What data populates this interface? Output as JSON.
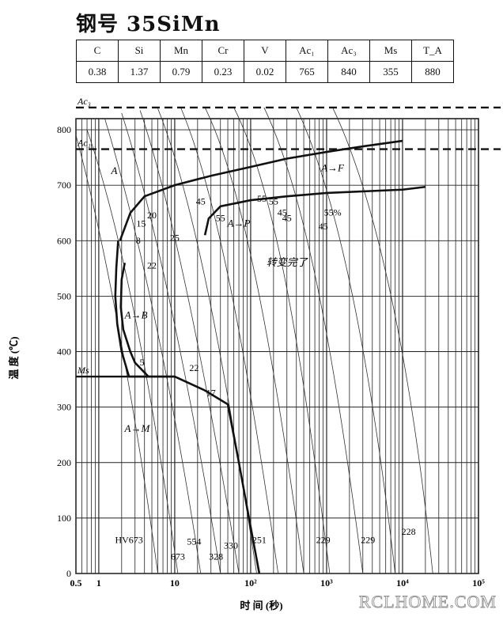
{
  "title": "钢号 35SiMn",
  "composition": {
    "headers": [
      "C",
      "Si",
      "Mn",
      "Cr",
      "V",
      "Ac₁",
      "Ac₃",
      "Ms",
      "T_A"
    ],
    "values": [
      "0.38",
      "1.37",
      "0.79",
      "0.23",
      "0.02",
      "765",
      "840",
      "355",
      "880"
    ]
  },
  "chart_data": {
    "type": "line",
    "xlabel": "时 间 (秒)",
    "ylabel": "温 度 (℃)",
    "x_scale": "log",
    "xlim": [
      0.5,
      100000
    ],
    "ylim": [
      0,
      820
    ],
    "x_ticks": [
      {
        "v": 0.5,
        "label": "0.5"
      },
      {
        "v": 1,
        "label": "1"
      },
      {
        "v": 10,
        "label": "10"
      },
      {
        "v": 100,
        "label": "10²"
      },
      {
        "v": 1000,
        "label": "10³"
      },
      {
        "v": 10000,
        "label": "10⁴"
      },
      {
        "v": 100000,
        "label": "10⁵"
      }
    ],
    "y_ticks": [
      0,
      100,
      200,
      300,
      400,
      500,
      600,
      700,
      800
    ],
    "reference_lines": [
      {
        "name": "Ac₃",
        "y": 840
      },
      {
        "name": "Ac₁",
        "y": 765
      },
      {
        "name": "Ms",
        "y": 355
      }
    ],
    "series": [
      {
        "name": "A→F",
        "points": [
          [
            1.9,
            600
          ],
          [
            2.6,
            650
          ],
          [
            4,
            680
          ],
          [
            10,
            700
          ],
          [
            30,
            717
          ],
          [
            100,
            733
          ],
          [
            300,
            748
          ],
          [
            1000,
            760
          ],
          [
            3000,
            770
          ],
          [
            10000,
            780
          ]
        ]
      },
      {
        "name": "A→P",
        "points": [
          [
            25,
            610
          ],
          [
            28,
            640
          ],
          [
            40,
            662
          ],
          [
            100,
            673
          ],
          [
            300,
            680
          ],
          [
            1000,
            686
          ],
          [
            10000,
            692
          ],
          [
            20000,
            697
          ]
        ]
      },
      {
        "name": "转变完了",
        "points": [
          [
            1.8,
            600
          ],
          [
            1.7,
            550
          ],
          [
            1.65,
            500
          ],
          [
            1.75,
            450
          ],
          [
            2,
            400
          ],
          [
            2.5,
            355
          ],
          [
            3,
            355
          ],
          [
            10,
            355
          ],
          [
            25,
            330
          ],
          [
            50,
            305
          ],
          [
            70,
            200
          ],
          [
            95,
            100
          ],
          [
            130,
            0
          ]
        ]
      },
      {
        "name": "A→B",
        "points": [
          [
            2.2,
            560
          ],
          [
            2.0,
            530
          ],
          [
            1.95,
            480
          ],
          [
            2.1,
            440
          ],
          [
            2.6,
            400
          ],
          [
            3,
            380
          ],
          [
            4.5,
            355
          ]
        ]
      }
    ],
    "cooling_labels": [
      "8",
      "15",
      "20",
      "22",
      "25",
      "45",
      "55",
      "55",
      "55",
      "45",
      "45",
      "55%",
      "45",
      "5",
      "22",
      "17"
    ],
    "hardness_values": [
      "HV673",
      "673",
      "554",
      "328",
      "330",
      "251",
      "229",
      "229",
      "228"
    ],
    "region_labels": {
      "austenite": "A",
      "transformation_finished": "转变完了",
      "martensite": "A→M",
      "bainite": "A→B",
      "pearlite": "A→P",
      "ferrite": "A→F"
    }
  },
  "watermark": "RCLHOME.COM"
}
